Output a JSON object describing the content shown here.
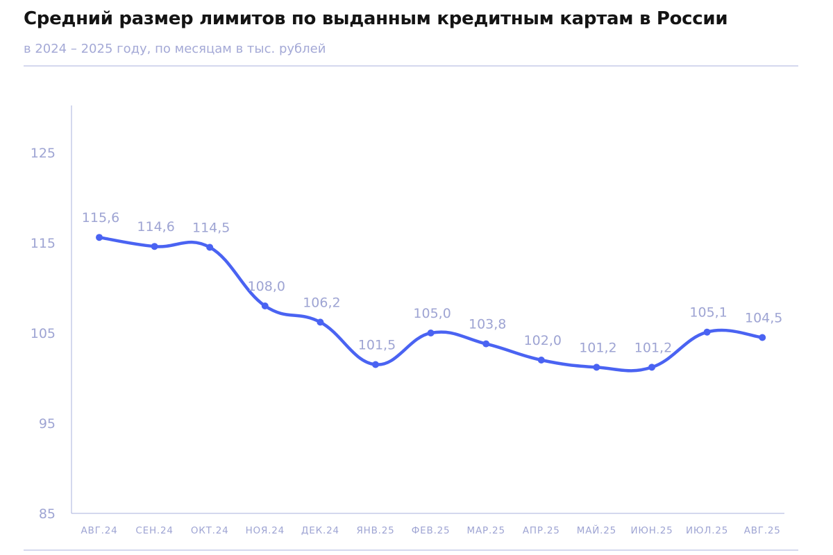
{
  "header": {
    "title": "Средний размер лимитов по выданным кредитным картам в России",
    "subtitle": "в 2024 – 2025 году, по месяцам в тыс. рублей"
  },
  "colors": {
    "line": "#4a63f2",
    "axis": "#aab0dc",
    "label": "#9ea4d3",
    "title": "#141414"
  },
  "chart_data": {
    "type": "line",
    "title": "Средний размер лимитов по выданным кредитным картам в России",
    "subtitle": "в 2024 – 2025 году, по месяцам в тыс. рублей",
    "xlabel": "",
    "ylabel": "",
    "categories": [
      "АВГ.24",
      "СЕН.24",
      "ОКТ.24",
      "НОЯ.24",
      "ДЕК.24",
      "ЯНВ.25",
      "ФЕВ.25",
      "МАР.25",
      "АПР.25",
      "МАЙ.25",
      "ИЮН.25",
      "ИЮЛ.25",
      "АВГ.25"
    ],
    "values": [
      115.6,
      114.6,
      114.5,
      108.0,
      106.2,
      101.5,
      105.0,
      103.8,
      102.0,
      101.2,
      101.2,
      105.1,
      104.5
    ],
    "value_labels": [
      "115,6",
      "114,6",
      "114,5",
      "108,0",
      "106,2",
      "101,5",
      "105,0",
      "103,8",
      "102,0",
      "101,2",
      "101,2",
      "105,1",
      "104,5"
    ],
    "yticks": [
      85,
      95,
      105,
      115,
      125
    ],
    "ylim": [
      85,
      130
    ],
    "grid": false,
    "legend": "none",
    "smooth": true
  }
}
